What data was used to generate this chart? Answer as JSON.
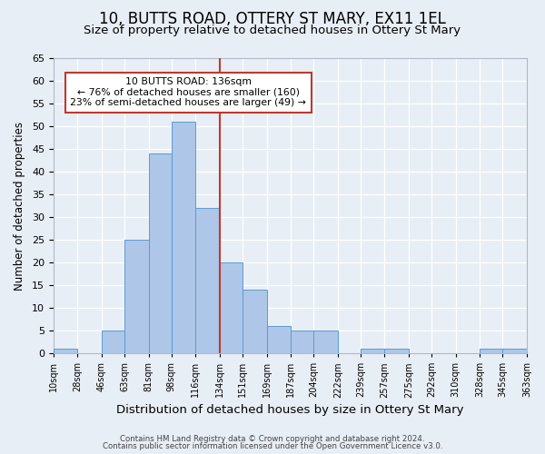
{
  "title": "10, BUTTS ROAD, OTTERY ST MARY, EX11 1EL",
  "subtitle": "Size of property relative to detached houses in Ottery St Mary",
  "xlabel": "Distribution of detached houses by size in Ottery St Mary",
  "ylabel": "Number of detached properties",
  "bin_edges": [
    10,
    28,
    46,
    63,
    81,
    98,
    116,
    134,
    151,
    169,
    187,
    204,
    222,
    239,
    257,
    275,
    292,
    310,
    328,
    345,
    363
  ],
  "bin_labels": [
    "10sqm",
    "28sqm",
    "46sqm",
    "63sqm",
    "81sqm",
    "98sqm",
    "116sqm",
    "134sqm",
    "151sqm",
    "169sqm",
    "187sqm",
    "204sqm",
    "222sqm",
    "239sqm",
    "257sqm",
    "275sqm",
    "292sqm",
    "310sqm",
    "328sqm",
    "345sqm",
    "363sqm"
  ],
  "counts": [
    1,
    0,
    5,
    25,
    44,
    51,
    32,
    20,
    14,
    6,
    5,
    5,
    0,
    1,
    1,
    0,
    0,
    0,
    1,
    1
  ],
  "bar_color": "#aec6e8",
  "bar_edge_color": "#5b9bd5",
  "vline_x": 134,
  "vline_color": "#c0392b",
  "annotation_title": "10 BUTTS ROAD: 136sqm",
  "annotation_line1": "← 76% of detached houses are smaller (160)",
  "annotation_line2": "23% of semi-detached houses are larger (49) →",
  "annotation_box_color": "#c0392b",
  "annotation_fill": "#ffffff",
  "ylim": [
    0,
    65
  ],
  "yticks": [
    0,
    5,
    10,
    15,
    20,
    25,
    30,
    35,
    40,
    45,
    50,
    55,
    60,
    65
  ],
  "background_color": "#e8eef5",
  "footer_line1": "Contains HM Land Registry data © Crown copyright and database right 2024.",
  "footer_line2": "Contains public sector information licensed under the Open Government Licence v3.0.",
  "title_fontsize": 12,
  "subtitle_fontsize": 9.5,
  "xlabel_fontsize": 9.5,
  "ylabel_fontsize": 8.5
}
